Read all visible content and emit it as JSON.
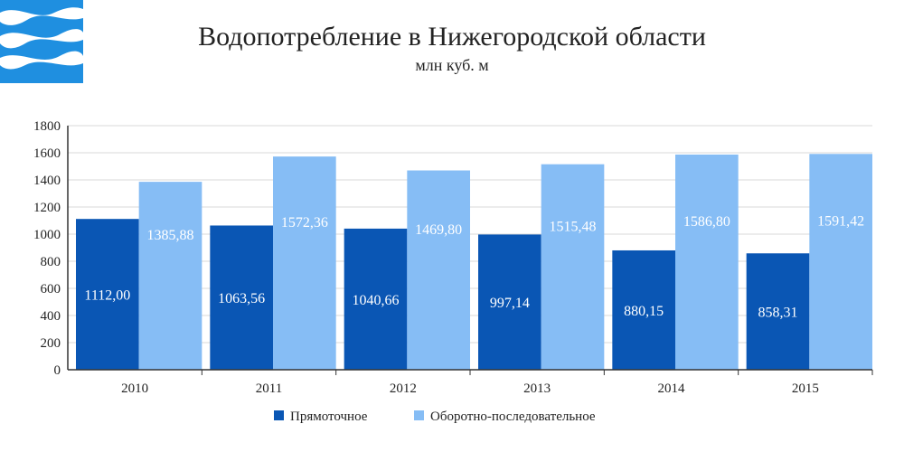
{
  "colors": {
    "series1": "#0a56b4",
    "series2": "#86bdf5",
    "logo_bg": "#1f8fe0",
    "grid": "#d9d9d9",
    "axis": "#333333"
  },
  "logo": {
    "icon": "water-waves-logo"
  },
  "chart_data": {
    "type": "bar",
    "title": "Водопотребление в Нижегородской области",
    "subtitle": "млн куб. м",
    "categories": [
      "2010",
      "2011",
      "2012",
      "2013",
      "2014",
      "2015"
    ],
    "series": [
      {
        "name": "Прямоточное",
        "values": [
          1112.0,
          1063.56,
          1040.66,
          997.14,
          880.15,
          858.31
        ],
        "labels": [
          "1112,00",
          "1063,56",
          "1040,66",
          "997,14",
          "880,15",
          "858,31"
        ]
      },
      {
        "name": "Оборотно-последовательное",
        "values": [
          1385.88,
          1572.36,
          1469.8,
          1515.48,
          1586.8,
          1591.42
        ],
        "labels": [
          "1385,88",
          "1572,36",
          "1469,80",
          "1515,48",
          "1586,80",
          "1591,42"
        ]
      }
    ],
    "ylim": [
      0,
      1800
    ],
    "yticks": [
      "0",
      "200",
      "400",
      "600",
      "800",
      "1000",
      "1200",
      "1400",
      "1600",
      "1800"
    ],
    "grid": true,
    "legend": "bottom-center"
  }
}
